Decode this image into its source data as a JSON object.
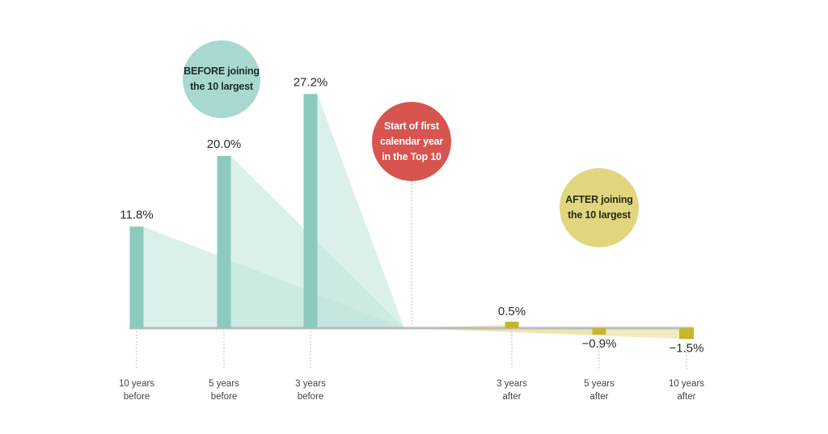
{
  "chart_data": {
    "type": "bar",
    "categories": [
      {
        "line1": "10 years",
        "line2": "before",
        "period": "before"
      },
      {
        "line1": "5 years",
        "line2": "before",
        "period": "before"
      },
      {
        "line1": "3 years",
        "line2": "before",
        "period": "before"
      },
      {
        "line1": "3 years",
        "line2": "after",
        "period": "after"
      },
      {
        "line1": "5 years",
        "line2": "after",
        "period": "after"
      },
      {
        "line1": "10 years",
        "line2": "after",
        "period": "after"
      }
    ],
    "values": [
      11.8,
      20.0,
      27.2,
      0.5,
      -0.9,
      -1.5
    ],
    "value_labels": [
      "11.8%",
      "20.0%",
      "27.2%",
      "0.5%",
      "−0.9%",
      "−1.5%"
    ],
    "annotations": {
      "before": {
        "line1": "BEFORE joining",
        "line2": "the 10 largest"
      },
      "start": {
        "line1": "Start of first",
        "line2": "calendar year",
        "line3": "in the Top 10"
      },
      "after": {
        "line1": "AFTER joining",
        "line2": "the 10 largest"
      }
    },
    "ylim": [
      -3,
      30
    ]
  },
  "colors": {
    "before_bar": "#8ccabd",
    "before_fill": "#bfe3da",
    "after_bar": "#c8b52c",
    "after_fill": "#ece3a4",
    "baseline": "#b6bcc0"
  }
}
